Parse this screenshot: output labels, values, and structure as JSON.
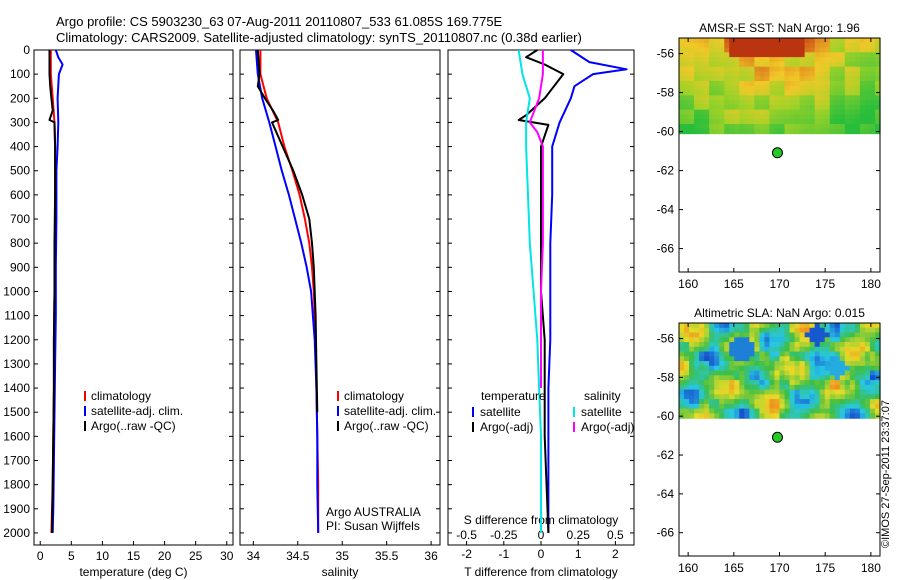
{
  "header": {
    "line1": "Argo profile: CS 5903230_63 07-Aug-2011 20110807_533 61.085S 169.775E",
    "line2": "Climatology: CARS2009. Satellite-adjusted climatology: synTS_20110807.nc (0.38d earlier)"
  },
  "footer": {
    "stamp": "©IMOS 27-Sep-2011 23:37:07"
  },
  "colors": {
    "climatology": "#ff0000",
    "satellite": "#0000ff",
    "argo": "#000000",
    "sal_sat": "#00e5e5",
    "sal_argo": "#ff00ff",
    "float_dot": "#22cc22"
  },
  "chart_data": [
    {
      "type": "line",
      "panel": "temperature",
      "xlabel": "temperature (deg C)",
      "xlim": [
        -1,
        31
      ],
      "xticks": [
        "0",
        "5",
        "10",
        "15",
        "20",
        "25",
        "30"
      ],
      "ylim": [
        0,
        2050
      ],
      "yticks": [
        "0",
        "100",
        "200",
        "300",
        "400",
        "500",
        "600",
        "700",
        "800",
        "900",
        "1000",
        "1100",
        "1200",
        "1300",
        "1400",
        "1500",
        "1600",
        "1700",
        "1800",
        "1900",
        "2000"
      ],
      "legend": [
        "climatology",
        "satellite-adj. clim.",
        "Argo(..raw -QC)"
      ],
      "series": [
        {
          "name": "climatology",
          "color": "red",
          "x": [
            1.7,
            1.7,
            2.0,
            2.3,
            2.4,
            2.4,
            2.4,
            2.4,
            2.4,
            2.3,
            2.3,
            2.2,
            2.2,
            2.1,
            2.0,
            1.8
          ],
          "y": [
            0,
            100,
            200,
            300,
            400,
            500,
            600,
            700,
            800,
            900,
            1000,
            1200,
            1400,
            1600,
            1800,
            2000
          ]
        },
        {
          "name": "satellite-adj. clim.",
          "color": "blue",
          "x": [
            2.5,
            2.9,
            3.6,
            3.0,
            2.8,
            2.9,
            2.8,
            2.6,
            2.6,
            2.5,
            2.5,
            2.4,
            2.3,
            2.2,
            2.1,
            2.0
          ],
          "y": [
            0,
            30,
            60,
            100,
            200,
            300,
            400,
            500,
            700,
            900,
            1100,
            1300,
            1500,
            1700,
            1900,
            2000
          ]
        },
        {
          "name": "Argo(..raw -QC)",
          "color": "black",
          "x": [
            1.5,
            1.5,
            1.6,
            1.8,
            2.0,
            1.5,
            2.3,
            2.4,
            2.4,
            2.3,
            2.3,
            2.2,
            2.2,
            2.1,
            2.0,
            1.9
          ],
          "y": [
            0,
            100,
            150,
            200,
            250,
            290,
            300,
            400,
            600,
            800,
            1000,
            1200,
            1400,
            1600,
            1800,
            2000
          ]
        }
      ]
    },
    {
      "type": "line",
      "panel": "salinity",
      "xlabel": "salinity",
      "xlim": [
        33.85,
        36.1
      ],
      "xticks": [
        "34",
        "34.5",
        "35",
        "35.5",
        "36"
      ],
      "ylim": [
        0,
        2050
      ],
      "legend": [
        "climatology",
        "satellite-adj. clim.",
        "Argo(..raw -QC)"
      ],
      "annotation": [
        "Argo AUSTRALIA",
        "PI: Susan Wijffels"
      ],
      "series": [
        {
          "name": "climatology",
          "color": "red",
          "x": [
            34.08,
            34.08,
            34.15,
            34.28,
            34.35,
            34.44,
            34.52,
            34.58,
            34.63,
            34.66,
            34.68,
            34.7,
            34.71,
            34.72,
            34.73,
            34.73
          ],
          "y": [
            0,
            100,
            200,
            300,
            400,
            500,
            600,
            700,
            800,
            900,
            1000,
            1200,
            1400,
            1600,
            1800,
            2000
          ]
        },
        {
          "name": "satellite-adj. clim.",
          "color": "blue",
          "x": [
            34.03,
            34.05,
            34.1,
            34.18,
            34.25,
            34.32,
            34.4,
            34.47,
            34.54,
            34.6,
            34.65,
            34.69,
            34.71,
            34.72,
            34.72,
            34.73
          ],
          "y": [
            0,
            100,
            200,
            300,
            400,
            500,
            600,
            700,
            800,
            900,
            1000,
            1200,
            1400,
            1600,
            1800,
            2000
          ]
        },
        {
          "name": "Argo(..raw -QC)",
          "color": "black",
          "x": [
            34.05,
            34.07,
            34.05,
            34.13,
            34.22,
            34.28,
            34.21,
            34.33,
            34.45,
            34.55,
            34.63,
            34.66,
            34.68,
            34.7,
            34.71,
            34.72
          ],
          "y": [
            0,
            100,
            150,
            200,
            250,
            290,
            300,
            400,
            500,
            600,
            700,
            800,
            900,
            1100,
            1300,
            1500
          ]
        }
      ]
    },
    {
      "type": "line",
      "panel": "differences",
      "xlabel_top": "S difference from climatology",
      "xticks_top": [
        "-0.5",
        "-0.25",
        "0",
        "0.25",
        "0.5"
      ],
      "xlabel": "T difference from climatology",
      "xticks": [
        "-2",
        "-1",
        "0",
        "1",
        "2"
      ],
      "xlim": [
        -2.5,
        2.5
      ],
      "ylim": [
        0,
        2050
      ],
      "legend_left_title": "temperature",
      "legend_right_title": "salinity",
      "legend": [
        "satellite",
        "Argo(-adj)",
        "satellite",
        "Argo(-adj)"
      ],
      "series": [
        {
          "name": "temperature satellite",
          "color": "blue",
          "x": [
            0.8,
            1.3,
            2.3,
            1.4,
            0.9,
            0.8,
            0.5,
            0.3,
            0.3,
            0.25,
            0.25,
            0.25,
            0.2,
            0.2,
            0.2,
            0.2
          ],
          "y": [
            0,
            50,
            80,
            100,
            150,
            200,
            300,
            400,
            600,
            800,
            1000,
            1200,
            1400,
            1600,
            1800,
            2000
          ]
        },
        {
          "name": "temperature Argo(-adj)",
          "color": "black",
          "x": [
            -0.1,
            -0.4,
            0.1,
            0.6,
            0.1,
            -0.4,
            -0.6,
            0.2,
            0.0,
            0.0,
            0.0,
            0.0,
            0.1,
            0.1,
            0.1,
            0.2
          ],
          "y": [
            0,
            30,
            60,
            100,
            200,
            270,
            290,
            310,
            400,
            600,
            800,
            1000,
            1200,
            1400,
            1600,
            2000
          ]
        },
        {
          "name": "salinity satellite",
          "color": "cyan",
          "x": [
            -0.6,
            -0.5,
            -0.3,
            -0.4,
            -0.4,
            -0.35,
            -0.3,
            -0.2,
            -0.1,
            -0.05,
            0.0,
            0.0
          ],
          "y": [
            0,
            100,
            200,
            300,
            400,
            600,
            800,
            1000,
            1200,
            1400,
            1600,
            2000
          ]
        },
        {
          "name": "salinity Argo(-adj)",
          "color": "magenta",
          "x": [
            0.05,
            0.05,
            -0.05,
            -0.3,
            -0.1,
            0.05,
            0.05,
            0.05,
            0.0,
            0.0,
            0.0
          ],
          "y": [
            0,
            100,
            200,
            300,
            340,
            400,
            600,
            800,
            1000,
            1200,
            1400
          ]
        }
      ]
    },
    {
      "type": "heatmap",
      "panel": "AMSR-E SST",
      "title": "AMSR-E SST: NaN Argo: 1.96",
      "xlim": [
        159,
        181
      ],
      "ylim": [
        -67.2,
        -55.2
      ],
      "xticks": [
        "160",
        "165",
        "170",
        "175",
        "180"
      ],
      "yticks": [
        "-56",
        "-58",
        "-60",
        "-62",
        "-64",
        "-66"
      ],
      "data_lat_range": [
        -60.1,
        -55.2
      ],
      "float_position": {
        "lon": 169.775,
        "lat": -61.085
      }
    },
    {
      "type": "heatmap",
      "panel": "Altimetric SLA",
      "title": "Altimetric SLA: NaN Argo: 0.015",
      "xlim": [
        159,
        181
      ],
      "ylim": [
        -67.2,
        -55.2
      ],
      "xticks": [
        "160",
        "165",
        "170",
        "175",
        "180"
      ],
      "yticks": [
        "-56",
        "-58",
        "-60",
        "-62",
        "-64",
        "-66"
      ],
      "data_lat_range": [
        -60.1,
        -55.2
      ],
      "float_position": {
        "lon": 169.775,
        "lat": -61.085
      }
    }
  ]
}
